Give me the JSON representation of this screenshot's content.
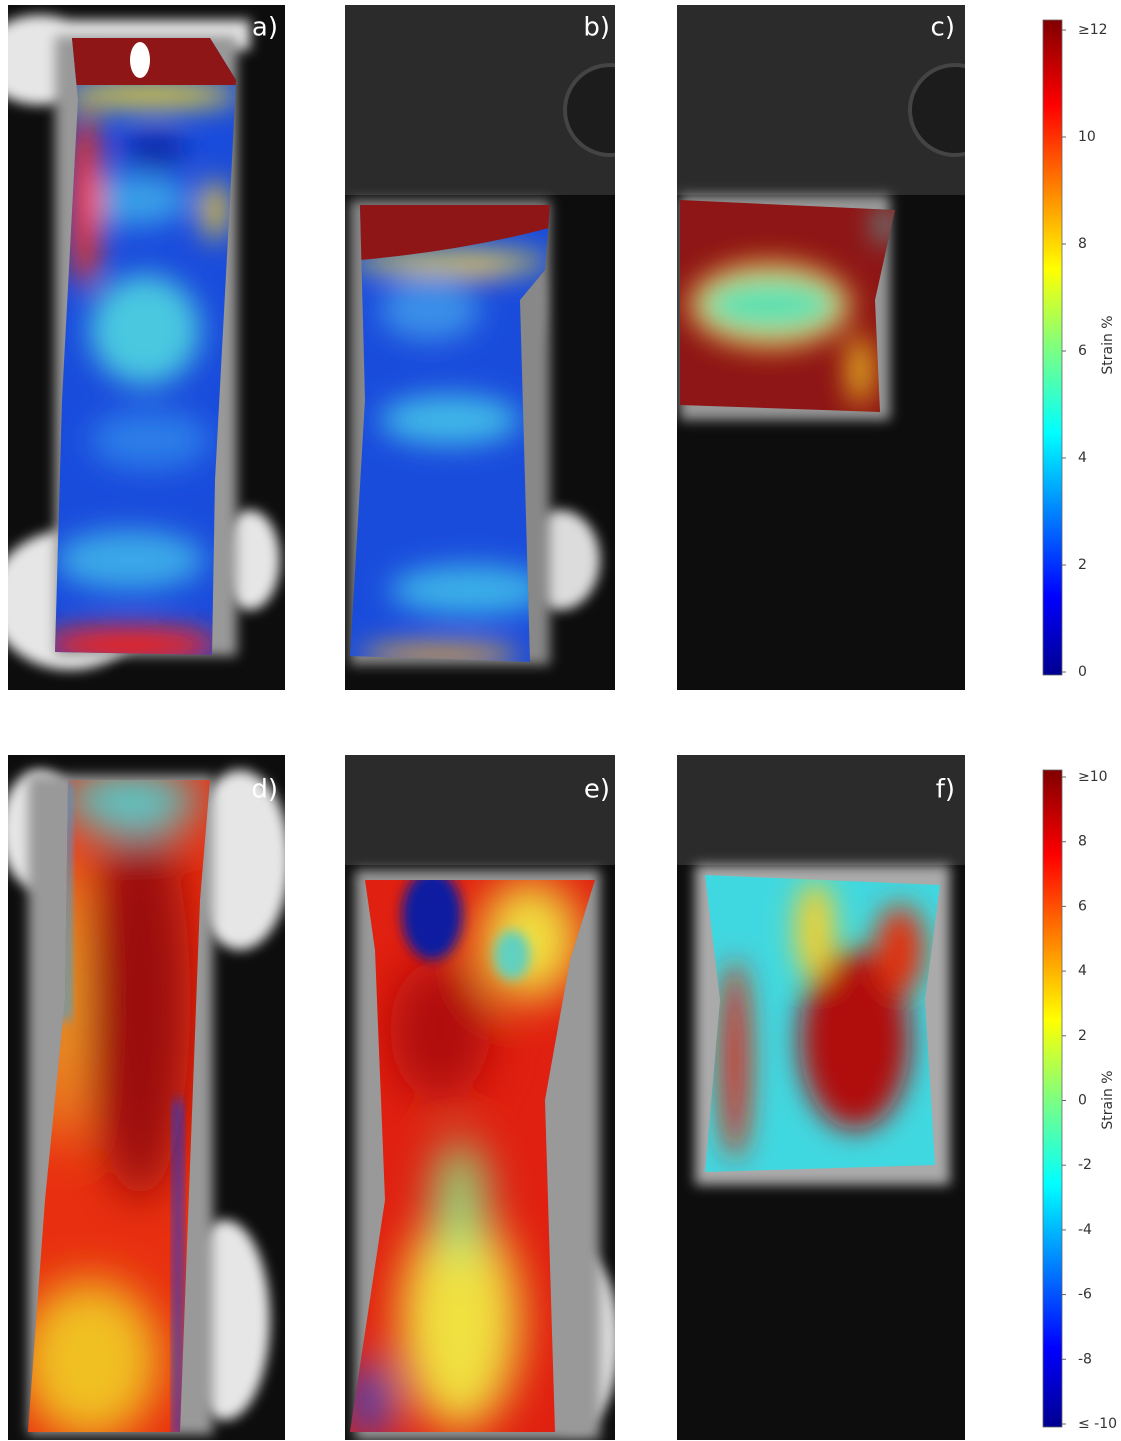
{
  "panels": [
    {
      "label": "a)"
    },
    {
      "label": "b)"
    },
    {
      "label": "c)"
    },
    {
      "label": "d)"
    },
    {
      "label": "e)"
    },
    {
      "label": "f)"
    }
  ],
  "colorbars": [
    {
      "title": "Strain %",
      "lim": [
        0,
        12
      ],
      "ticks": [
        {
          "value": 12,
          "label": "≥12"
        },
        10,
        8,
        6,
        4,
        2,
        0
      ]
    },
    {
      "title": "Strain %",
      "lim": [
        -10,
        10
      ],
      "ticks": [
        {
          "value": 10,
          "label": "≥10"
        },
        8,
        6,
        4,
        2,
        0,
        -2,
        -4,
        -6,
        -8,
        {
          "value": -10,
          "label": "≤ -10"
        }
      ]
    }
  ]
}
